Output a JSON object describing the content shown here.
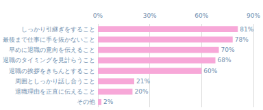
{
  "chart_data": {
    "type": "bar",
    "orientation": "horizontal",
    "categories": [
      "しっかり引継ぎをすること",
      "最後まで仕事に手を抜かないこと",
      "早めに退職の意向を伝えること",
      "退職のタイミングを見計らうこと",
      "退職の挨拶をきちんとすること",
      "周囲としっかり話し合うこと",
      "退職理由を正直に伝えること",
      "その他"
    ],
    "values": [
      81,
      78,
      70,
      68,
      60,
      21,
      20,
      2
    ],
    "value_labels": [
      "81%",
      "78%",
      "70%",
      "68%",
      "60%",
      "21%",
      "20%",
      "2%"
    ],
    "data_labels": true,
    "color": "#f7a8d8",
    "xlim": [
      0,
      90
    ],
    "xticks": [
      {
        "value": 0,
        "label": "0%"
      },
      {
        "value": 30,
        "label": "30%"
      },
      {
        "value": 60,
        "label": "60%"
      },
      {
        "value": 90,
        "label": "90%"
      }
    ],
    "grid": true
  }
}
